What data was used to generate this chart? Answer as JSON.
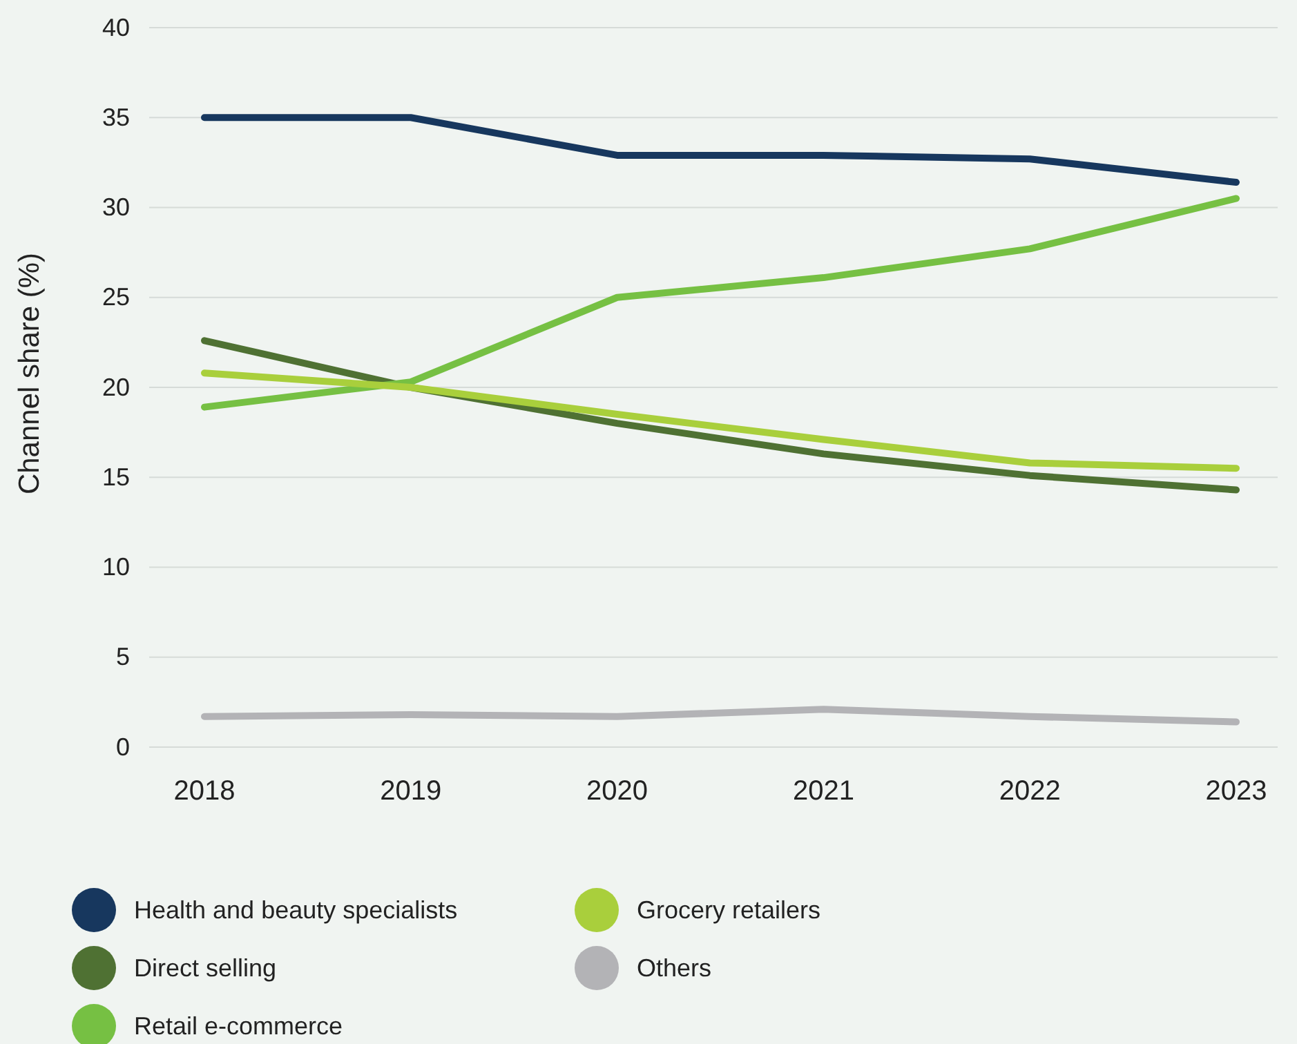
{
  "chart_data": {
    "type": "line",
    "ylabel": "Channel share (%)",
    "categories": [
      "2018",
      "2019",
      "2020",
      "2021",
      "2022",
      "2023"
    ],
    "series": [
      {
        "name": "Health and beauty specialists",
        "color": "#17375e",
        "values": [
          35,
          35,
          32.9,
          32.9,
          32.7,
          31.4
        ]
      },
      {
        "name": "Direct selling",
        "color": "#4f7133",
        "values": [
          22.6,
          20,
          18,
          16.3,
          15.1,
          14.3
        ]
      },
      {
        "name": "Retail e-commerce",
        "color": "#76c043",
        "values": [
          18.9,
          20.3,
          25,
          26.1,
          27.7,
          30.5
        ]
      },
      {
        "name": "Grocery retailers",
        "color": "#a9cf3c",
        "values": [
          20.8,
          20,
          18.5,
          17.1,
          15.8,
          15.5
        ]
      },
      {
        "name": "Others",
        "color": "#b3b3b6",
        "values": [
          1.7,
          1.8,
          1.7,
          2.1,
          1.7,
          1.4
        ]
      }
    ],
    "ylim": [
      0,
      40
    ],
    "yticks": [
      0,
      5,
      10,
      15,
      20,
      25,
      30,
      35,
      40
    ],
    "grid": "y",
    "legend": "bottom",
    "marker": "none",
    "line_style": "solid"
  }
}
